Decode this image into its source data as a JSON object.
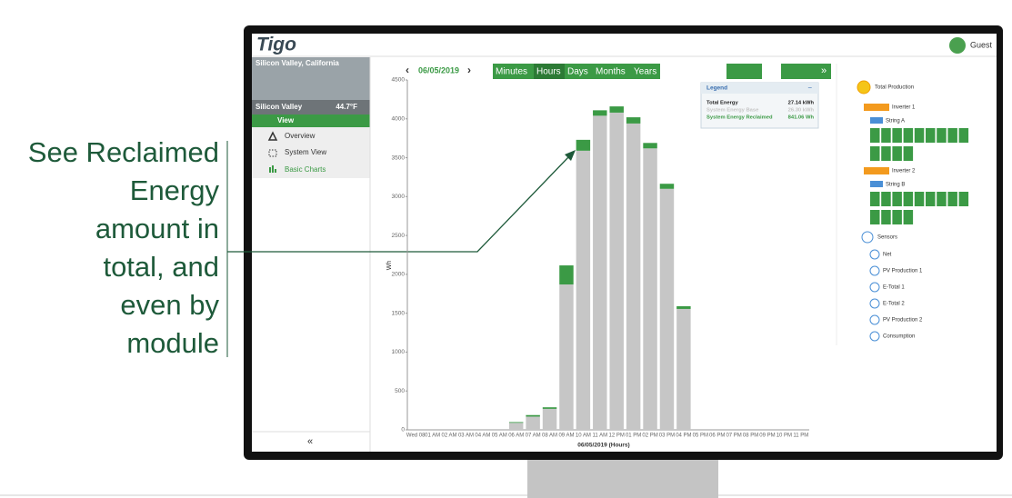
{
  "callout": {
    "lines": [
      "See Reclaimed",
      "Energy",
      "amount in",
      "total, and",
      "even by",
      "module"
    ]
  },
  "app": {
    "logo": "Tigo",
    "user": "Guest",
    "site": {
      "name": "Silicon Valley, California",
      "short_name": "Silicon Valley",
      "temperature": "44.7°F"
    },
    "menu": {
      "section": "View",
      "items": [
        "Overview",
        "System View",
        "Basic Charts"
      ],
      "collapse": "«"
    },
    "toolbar": {
      "prev": "‹",
      "date": "06/05/2019",
      "next": "›",
      "tabs": [
        "Minutes",
        "Hours",
        "Days",
        "Months",
        "Years"
      ],
      "more": "»"
    },
    "tree": {
      "root": "Total Production",
      "inverters": [
        {
          "name": "Inverter 1",
          "string": "String A"
        },
        {
          "name": "Inverter 2",
          "string": "String B"
        }
      ],
      "sensors": "Sensors",
      "sensor_items": [
        "Net",
        "PV Production 1",
        "E-Total 1",
        "E-Total 2",
        "PV Production 2",
        "Consumption"
      ]
    }
  },
  "chart_data": {
    "type": "stacked_bar",
    "x_label": "06/05/2019 (Hours)",
    "y_label": "Wh",
    "categories": [
      "Wed 08",
      "01 AM",
      "02 AM",
      "03 AM",
      "04 AM",
      "05 AM",
      "06 AM",
      "07 AM",
      "08 AM",
      "09 AM",
      "10 AM",
      "11 AM",
      "12 PM",
      "01 PM",
      "02 PM",
      "03 PM",
      "04 PM",
      "05 PM",
      "06 PM",
      "07 PM",
      "08 PM",
      "09 PM",
      "10 PM",
      "11 PM"
    ],
    "series": [
      {
        "name": "System Energy Base",
        "color": "#c6c6c6",
        "total": "26.30 kWh",
        "values": [
          0,
          0,
          0,
          0,
          0,
          0,
          90,
          170,
          270,
          1870,
          3590,
          4040,
          4080,
          3940,
          3620,
          3100,
          1555,
          0,
          0,
          0,
          0,
          0,
          0,
          0
        ]
      },
      {
        "name": "System Energy Reclaimed",
        "color": "#3b9a45",
        "total": "841.06 Wh",
        "values": [
          0,
          0,
          0,
          0,
          0,
          0,
          10,
          20,
          20,
          245,
          140,
          70,
          80,
          80,
          70,
          65,
          35,
          0,
          0,
          0,
          0,
          0,
          0,
          0
        ]
      }
    ],
    "legend": {
      "title": "Legend",
      "toggle": "−",
      "total_label": "Total Energy",
      "total_value": "27.14 kWh"
    },
    "ylim": [
      0,
      4500
    ],
    "yticks": [
      0,
      500,
      1000,
      1500,
      2000,
      2500,
      3000,
      3500,
      4000,
      4500
    ],
    "grid": false
  }
}
